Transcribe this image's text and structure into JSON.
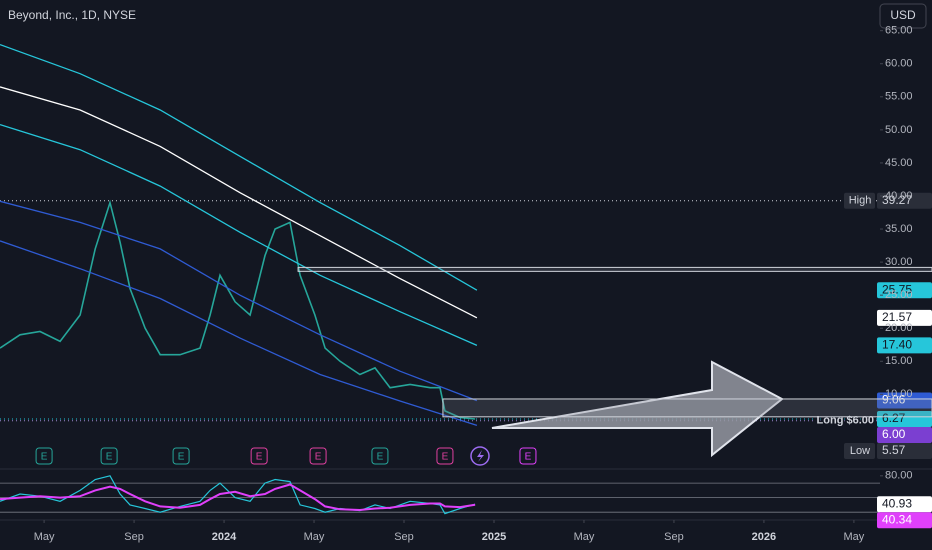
{
  "chart_data": {
    "type": "line",
    "title": "Beyond, Inc., 1D, NYSE",
    "currency": "USD",
    "position_label": "Long $6.00",
    "xlim": [
      -1.96,
      37.16
    ],
    "xticks": [
      {
        "value": 0,
        "label": "May"
      },
      {
        "value": 4,
        "label": "Sep"
      },
      {
        "value": 8,
        "label": "2024"
      },
      {
        "value": 12,
        "label": "May"
      },
      {
        "value": 16,
        "label": "Sep"
      },
      {
        "value": 20,
        "label": "2025"
      },
      {
        "value": 24,
        "label": "May"
      },
      {
        "value": 28,
        "label": "Sep"
      },
      {
        "value": 32,
        "label": "2026"
      },
      {
        "value": 36,
        "label": "May"
      }
    ],
    "ylim": [
      -1.14,
      69.64
    ],
    "yticks": [
      {
        "value": 65,
        "label": "65.00"
      },
      {
        "value": 60,
        "label": "60.00"
      },
      {
        "value": 55,
        "label": "55.00"
      },
      {
        "value": 50,
        "label": "50.00"
      },
      {
        "value": 45,
        "label": "45.00"
      },
      {
        "value": 40,
        "label": "40.00"
      },
      {
        "value": 35,
        "label": "35.00"
      },
      {
        "value": 30,
        "label": "30.00"
      },
      {
        "value": 25,
        "label": "25.00"
      },
      {
        "value": 20,
        "label": "20.00"
      },
      {
        "value": 15,
        "label": "15.00"
      },
      {
        "value": 10,
        "label": "10.00"
      }
    ],
    "series": [
      {
        "color": "#26a69a",
        "width": 1.6,
        "x": [
          -1.96,
          -1.07,
          -0.18,
          0.71,
          1.6,
          2.27,
          2.93,
          3.38,
          3.82,
          4.49,
          5.16,
          6.04,
          6.93,
          7.38,
          7.82,
          8.49,
          9.16,
          9.82,
          10.27,
          10.93,
          11.38,
          12.04,
          12.49,
          13.16,
          14.04,
          14.71,
          15.38,
          16.27,
          17.16,
          17.6,
          17.82,
          18.49,
          19.16
        ],
        "values": [
          17,
          19,
          19.5,
          18,
          22,
          32,
          39,
          33,
          26,
          20,
          16,
          16,
          17,
          22,
          28,
          24,
          22,
          31,
          35,
          36,
          28,
          22,
          17,
          15,
          13,
          14,
          11,
          11.5,
          11,
          11,
          7.5,
          6.5,
          6.27
        ]
      },
      {
        "color": "#26c6da",
        "width": 1.3,
        "x": [
          -1.96,
          1.6,
          5.16,
          8.71,
          12.27,
          15.82,
          19.24
        ],
        "values": [
          62.9,
          58.5,
          53,
          46,
          39,
          32.5,
          25.75
        ]
      },
      {
        "color": "#ffffff",
        "width": 1.3,
        "x": [
          -1.96,
          1.6,
          5.16,
          8.71,
          12.27,
          15.82,
          19.24
        ],
        "values": [
          56.5,
          53,
          47.5,
          40.5,
          34,
          27.5,
          21.57
        ]
      },
      {
        "color": "#26c6da",
        "width": 1.3,
        "x": [
          -1.96,
          1.6,
          5.16,
          8.71,
          12.27,
          15.82,
          19.24
        ],
        "values": [
          50.8,
          47,
          41.5,
          34.5,
          28,
          22.5,
          17.4
        ]
      },
      {
        "color": "#2f5bd3",
        "width": 1.3,
        "x": [
          -1.96,
          1.6,
          5.16,
          8.71,
          12.27,
          15.82,
          19.24
        ],
        "values": [
          39.2,
          36,
          32,
          25,
          19,
          13.5,
          9.06
        ]
      },
      {
        "color": "#2f5bd3",
        "width": 1.3,
        "x": [
          -1.96,
          1.6,
          5.16,
          8.71,
          12.27,
          15.82,
          19.24
        ],
        "values": [
          33.2,
          29,
          24.5,
          18.5,
          13,
          9,
          5.3
        ]
      }
    ],
    "hlines": [
      {
        "value": 39.27,
        "color": "#d1d4dc"
      },
      {
        "value": 6.27,
        "color": "#26c6da"
      },
      {
        "value": 6,
        "color": "#9c8ccf"
      }
    ],
    "zones": [
      {
        "x0": 11.29,
        "top": 29.2,
        "bottom": 28.6
      },
      {
        "x0": 17.73,
        "top": 9.3,
        "bottom": 6.6
      }
    ],
    "tags": [
      {
        "name": "High",
        "value": 39.27,
        "bg": "#2a2e39",
        "fg": "#d1d4dc"
      },
      {
        "value": {
          "value": 25.75,
          "label": "25.75"
        },
        "bg": "#26c6da",
        "fg": "#131722"
      },
      {
        "value": {
          "value": 21.57,
          "label": "21.57"
        },
        "bg": "#ffffff",
        "fg": "#131722"
      },
      {
        "value": {
          "value": 17.4,
          "label": "17.40"
        },
        "bg": "#26c6da",
        "fg": "#131722"
      },
      {
        "value": {
          "value": 9.06,
          "label": "9.06"
        },
        "bg": "#2f5bd3",
        "fg": "#ffffff"
      },
      {
        "value": {
          "value": 6.27,
          "label": "6.27"
        },
        "bg": "#26c6da",
        "fg": "#131722"
      },
      {
        "value": {
          "value": 6,
          "label": "6.00"
        },
        "bg": "#7b3fd1",
        "fg": "#ffffff"
      },
      {
        "name": "Low",
        "value": 5.57,
        "bg": "#2a2e39",
        "fg": "#d1d4dc"
      }
    ],
    "events": [
      {
        "x": 0,
        "label": "E",
        "color": "#26a69a"
      },
      {
        "x": 2.89,
        "label": "E",
        "color": "#26a69a"
      },
      {
        "x": 6.09,
        "label": "E",
        "color": "#26a69a"
      },
      {
        "x": 9.56,
        "label": "E",
        "color": "#e040a0"
      },
      {
        "x": 12.18,
        "label": "E",
        "color": "#e040a0"
      },
      {
        "x": 14.93,
        "label": "E",
        "color": "#26a69a"
      },
      {
        "x": 17.82,
        "label": "E",
        "color": "#e040a0"
      },
      {
        "x": 21.51,
        "label": "E",
        "color": "#e040fb"
      }
    ],
    "rsi": {
      "ylim": [
        22,
        88
      ],
      "yticks": [
        {
          "value": 80,
          "label": "80.00"
        }
      ],
      "levels": [
        70,
        50,
        30
      ],
      "series": [
        {
          "color": "#26c6da",
          "values": [
            45,
            55,
            52,
            45,
            60,
            75,
            80,
            55,
            40,
            35,
            30,
            38,
            45,
            60,
            70,
            50,
            45,
            70,
            75,
            72,
            40,
            35,
            30,
            35,
            32,
            40,
            35,
            45,
            42,
            40,
            28,
            35,
            40.93
          ],
          "label": "40.93",
          "bg": "#ffffff",
          "fg": "#131722"
        },
        {
          "color": "#e040fb",
          "values": [
            48,
            50,
            52,
            50,
            52,
            60,
            65,
            62,
            55,
            45,
            38,
            36,
            40,
            48,
            55,
            58,
            52,
            55,
            62,
            68,
            60,
            48,
            38,
            34,
            33,
            35,
            36,
            40,
            42,
            42,
            38,
            37,
            40.34
          ],
          "label": "40.34",
          "bg": "#e040fb",
          "fg": "#ffffff"
        }
      ]
    }
  }
}
